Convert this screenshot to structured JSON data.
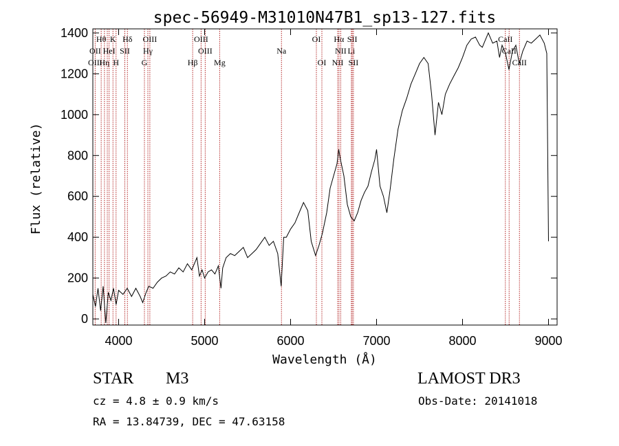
{
  "chart_data": {
    "type": "line",
    "title": "spec-56949-M31010N47B1_sp13-127.fits",
    "xlabel": "Wavelength (Å)",
    "ylabel": "Flux (relative)",
    "xlim": [
      3700,
      9100
    ],
    "ylim": [
      -30,
      1420
    ],
    "xticks": [
      4000,
      5000,
      6000,
      7000,
      8000,
      9000
    ],
    "yticks": [
      0,
      200,
      400,
      600,
      800,
      1000,
      1200,
      1400
    ],
    "series": [
      {
        "name": "spectrum",
        "points": [
          [
            3700,
            120
          ],
          [
            3730,
            60
          ],
          [
            3760,
            150
          ],
          [
            3790,
            40
          ],
          [
            3820,
            160
          ],
          [
            3850,
            -20
          ],
          [
            3880,
            130
          ],
          [
            3910,
            90
          ],
          [
            3940,
            150
          ],
          [
            3970,
            70
          ],
          [
            4000,
            140
          ],
          [
            4050,
            120
          ],
          [
            4100,
            150
          ],
          [
            4150,
            110
          ],
          [
            4200,
            150
          ],
          [
            4250,
            110
          ],
          [
            4280,
            80
          ],
          [
            4320,
            130
          ],
          [
            4350,
            160
          ],
          [
            4400,
            150
          ],
          [
            4450,
            180
          ],
          [
            4500,
            200
          ],
          [
            4550,
            210
          ],
          [
            4600,
            230
          ],
          [
            4650,
            220
          ],
          [
            4700,
            250
          ],
          [
            4750,
            230
          ],
          [
            4800,
            270
          ],
          [
            4850,
            240
          ],
          [
            4890,
            280
          ],
          [
            4910,
            300
          ],
          [
            4940,
            210
          ],
          [
            4970,
            240
          ],
          [
            5000,
            200
          ],
          [
            5040,
            230
          ],
          [
            5080,
            240
          ],
          [
            5120,
            220
          ],
          [
            5160,
            260
          ],
          [
            5190,
            150
          ],
          [
            5210,
            250
          ],
          [
            5250,
            300
          ],
          [
            5300,
            320
          ],
          [
            5350,
            310
          ],
          [
            5400,
            330
          ],
          [
            5450,
            350
          ],
          [
            5500,
            300
          ],
          [
            5550,
            320
          ],
          [
            5600,
            340
          ],
          [
            5650,
            370
          ],
          [
            5700,
            400
          ],
          [
            5750,
            360
          ],
          [
            5800,
            380
          ],
          [
            5850,
            320
          ],
          [
            5890,
            160
          ],
          [
            5920,
            400
          ],
          [
            5950,
            400
          ],
          [
            6000,
            440
          ],
          [
            6050,
            470
          ],
          [
            6100,
            520
          ],
          [
            6150,
            570
          ],
          [
            6200,
            530
          ],
          [
            6240,
            380
          ],
          [
            6290,
            310
          ],
          [
            6330,
            360
          ],
          [
            6370,
            420
          ],
          [
            6420,
            520
          ],
          [
            6460,
            640
          ],
          [
            6500,
            700
          ],
          [
            6540,
            760
          ],
          [
            6560,
            830
          ],
          [
            6580,
            780
          ],
          [
            6620,
            700
          ],
          [
            6660,
            560
          ],
          [
            6700,
            500
          ],
          [
            6740,
            480
          ],
          [
            6780,
            520
          ],
          [
            6820,
            580
          ],
          [
            6860,
            620
          ],
          [
            6900,
            650
          ],
          [
            6940,
            720
          ],
          [
            6980,
            780
          ],
          [
            7000,
            830
          ],
          [
            7040,
            650
          ],
          [
            7080,
            600
          ],
          [
            7120,
            520
          ],
          [
            7160,
            640
          ],
          [
            7200,
            780
          ],
          [
            7250,
            930
          ],
          [
            7300,
            1020
          ],
          [
            7350,
            1080
          ],
          [
            7400,
            1150
          ],
          [
            7450,
            1200
          ],
          [
            7500,
            1250
          ],
          [
            7550,
            1280
          ],
          [
            7600,
            1250
          ],
          [
            7640,
            1100
          ],
          [
            7680,
            900
          ],
          [
            7720,
            1060
          ],
          [
            7760,
            1000
          ],
          [
            7800,
            1100
          ],
          [
            7850,
            1150
          ],
          [
            7900,
            1190
          ],
          [
            7950,
            1230
          ],
          [
            8000,
            1280
          ],
          [
            8050,
            1340
          ],
          [
            8100,
            1370
          ],
          [
            8150,
            1380
          ],
          [
            8200,
            1340
          ],
          [
            8230,
            1330
          ],
          [
            8260,
            1360
          ],
          [
            8300,
            1400
          ],
          [
            8350,
            1350
          ],
          [
            8400,
            1360
          ],
          [
            8430,
            1280
          ],
          [
            8460,
            1340
          ],
          [
            8500,
            1300
          ],
          [
            8540,
            1220
          ],
          [
            8580,
            1310
          ],
          [
            8620,
            1340
          ],
          [
            8660,
            1250
          ],
          [
            8700,
            1310
          ],
          [
            8750,
            1360
          ],
          [
            8800,
            1350
          ],
          [
            8850,
            1370
          ],
          [
            8900,
            1390
          ],
          [
            8950,
            1350
          ],
          [
            8980,
            1300
          ],
          [
            9000,
            380
          ]
        ]
      }
    ],
    "line_markers": [
      {
        "w": 3727,
        "top": "",
        "mid": "OII",
        "bot": "OIII"
      },
      {
        "w": 3797,
        "top": "Hθ",
        "mid": "",
        "bot": ""
      },
      {
        "w": 3835,
        "top": "",
        "mid": "",
        "bot": "Hη"
      },
      {
        "w": 3868,
        "top": "",
        "mid": "",
        "bot": ""
      },
      {
        "w": 3889,
        "top": "",
        "mid": "HeI",
        "bot": ""
      },
      {
        "w": 3934,
        "top": "K",
        "mid": "",
        "bot": ""
      },
      {
        "w": 3970,
        "top": "",
        "mid": "",
        "bot": "H"
      },
      {
        "w": 4072,
        "top": "",
        "mid": "SII",
        "bot": ""
      },
      {
        "w": 4102,
        "top": "Hδ",
        "mid": "",
        "bot": ""
      },
      {
        "w": 4300,
        "top": "",
        "mid": "",
        "bot": "G"
      },
      {
        "w": 4340,
        "top": "",
        "mid": "Hγ",
        "bot": ""
      },
      {
        "w": 4363,
        "top": "OIII",
        "mid": "",
        "bot": ""
      },
      {
        "w": 4861,
        "top": "",
        "mid": "",
        "bot": "Hβ"
      },
      {
        "w": 4959,
        "top": "OIII",
        "mid": "",
        "bot": ""
      },
      {
        "w": 5007,
        "top": "",
        "mid": "OIII",
        "bot": ""
      },
      {
        "w": 5175,
        "top": "",
        "mid": "",
        "bot": "Mg"
      },
      {
        "w": 5894,
        "top": "",
        "mid": "Na",
        "bot": ""
      },
      {
        "w": 6300,
        "top": "OI",
        "mid": "",
        "bot": ""
      },
      {
        "w": 6364,
        "top": "",
        "mid": "",
        "bot": "OI"
      },
      {
        "w": 6548,
        "top": "",
        "mid": "",
        "bot": "NII"
      },
      {
        "w": 6563,
        "top": "Hα",
        "mid": "",
        "bot": ""
      },
      {
        "w": 6583,
        "top": "",
        "mid": "NII",
        "bot": ""
      },
      {
        "w": 6707,
        "top": "",
        "mid": "Li",
        "bot": ""
      },
      {
        "w": 6717,
        "top": "SII",
        "mid": "",
        "bot": ""
      },
      {
        "w": 6731,
        "top": "",
        "mid": "",
        "bot": "SII"
      },
      {
        "w": 8498,
        "top": "CaII",
        "mid": "",
        "bot": ""
      },
      {
        "w": 8542,
        "top": "",
        "mid": "CaII",
        "bot": ""
      },
      {
        "w": 8662,
        "top": "",
        "mid": "",
        "bot": "CaII"
      }
    ]
  },
  "info": {
    "class": "STAR",
    "subclass": "M3",
    "survey": "LAMOST DR3",
    "cz": "cz = 4.8 ± 0.9 km/s",
    "obs_date": "Obs-Date: 20141018",
    "coords": "RA =  13.84739, DEC =  47.63158"
  }
}
